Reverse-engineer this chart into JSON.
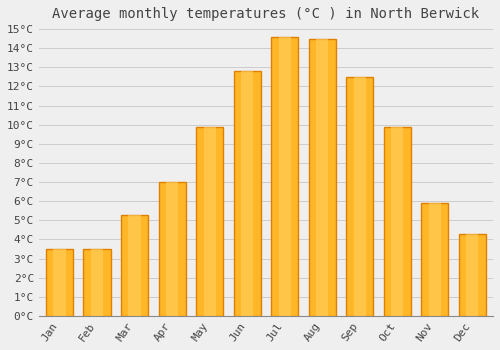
{
  "title": "Average monthly temperatures (°C ) in North Berwick",
  "months": [
    "Jan",
    "Feb",
    "Mar",
    "Apr",
    "May",
    "Jun",
    "Jul",
    "Aug",
    "Sep",
    "Oct",
    "Nov",
    "Dec"
  ],
  "values": [
    3.5,
    3.5,
    5.3,
    7.0,
    9.9,
    12.8,
    14.6,
    14.5,
    12.5,
    9.9,
    5.9,
    4.3
  ],
  "bar_color_inner": "#FFB627",
  "bar_color_edge": "#E08000",
  "background_color": "#EFEFEF",
  "grid_color": "#CCCCCC",
  "text_color": "#444444",
  "ylim": [
    0,
    15
  ],
  "ytick_step": 1,
  "title_fontsize": 10,
  "tick_fontsize": 8,
  "font_family": "monospace"
}
